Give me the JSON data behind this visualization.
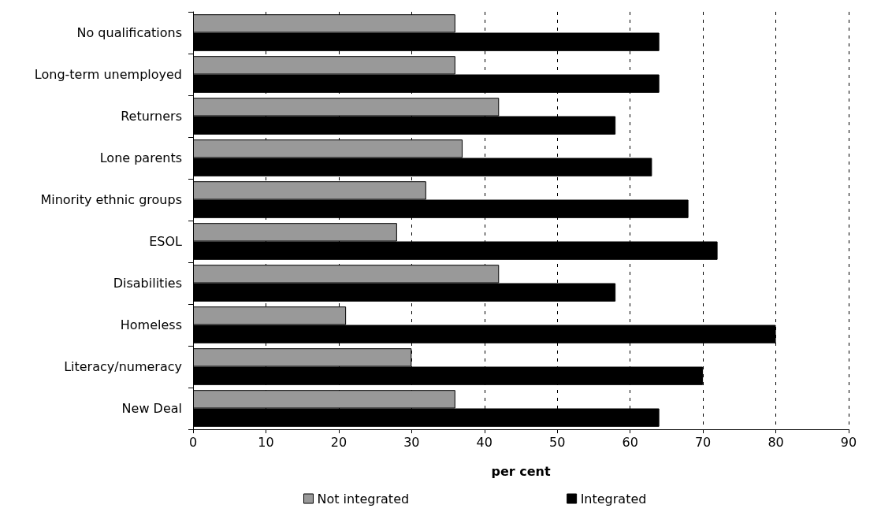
{
  "chart_data": {
    "type": "bar",
    "orientation": "horizontal",
    "xlabel": "per cent",
    "categories": [
      "No qualifications",
      "Long-term unemployed",
      "Returners",
      "Lone parents",
      "Minority ethnic groups",
      "ESOL",
      "Disabilities",
      "Homeless",
      "Literacy/numeracy",
      "New Deal"
    ],
    "series": [
      {
        "name": "Not integrated",
        "color": "#999999",
        "values": [
          36,
          36,
          42,
          37,
          32,
          28,
          42,
          21,
          30,
          36
        ]
      },
      {
        "name": "Integrated",
        "color": "#000000",
        "values": [
          64,
          64,
          58,
          63,
          68,
          72,
          58,
          80,
          70,
          64
        ]
      }
    ],
    "xlim": [
      0,
      90
    ],
    "xticks": [
      0,
      10,
      20,
      30,
      40,
      50,
      60,
      70,
      80,
      90
    ],
    "grid": "x",
    "legend": "bottom"
  }
}
